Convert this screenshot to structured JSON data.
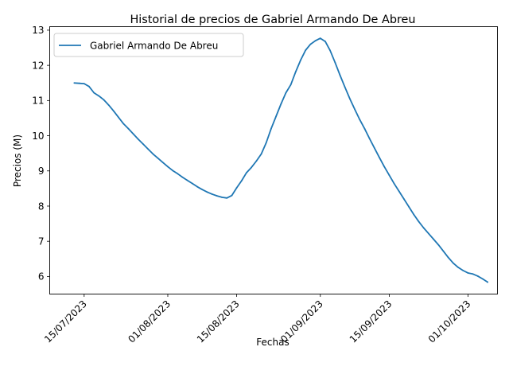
{
  "chart_data": {
    "type": "line",
    "title": "Historial de precios de Gabriel Armando De Abreu",
    "xlabel": "Fechas",
    "ylabel": "Precios (M)",
    "x_ticks": [
      "15/07/2023",
      "01/08/2023",
      "15/08/2023",
      "01/09/2023",
      "15/09/2023",
      "01/10/2023"
    ],
    "y_ticks": [
      "6",
      "7",
      "8",
      "9",
      "10",
      "11",
      "12",
      "13"
    ],
    "xlim": [
      "2023-07-08",
      "2023-10-07"
    ],
    "ylim": [
      5.5,
      13.1
    ],
    "grid": false,
    "legend_position": "upper-left",
    "color": "#1f77b4",
    "series": [
      {
        "name": "Gabriel Armando De Abreu",
        "points": [
          [
            "2023-07-13",
            11.5
          ],
          [
            "2023-07-14",
            11.49
          ],
          [
            "2023-07-15",
            11.48
          ],
          [
            "2023-07-16",
            11.4
          ],
          [
            "2023-07-17",
            11.22
          ],
          [
            "2023-07-18",
            11.13
          ],
          [
            "2023-07-19",
            11.02
          ],
          [
            "2023-07-20",
            10.87
          ],
          [
            "2023-07-21",
            10.7
          ],
          [
            "2023-07-22",
            10.52
          ],
          [
            "2023-07-23",
            10.34
          ],
          [
            "2023-07-24",
            10.2
          ],
          [
            "2023-07-25",
            10.05
          ],
          [
            "2023-07-26",
            9.9
          ],
          [
            "2023-07-27",
            9.76
          ],
          [
            "2023-07-28",
            9.62
          ],
          [
            "2023-07-29",
            9.48
          ],
          [
            "2023-07-30",
            9.36
          ],
          [
            "2023-07-31",
            9.24
          ],
          [
            "2023-08-01",
            9.12
          ],
          [
            "2023-08-02",
            9.01
          ],
          [
            "2023-08-03",
            8.92
          ],
          [
            "2023-08-04",
            8.82
          ],
          [
            "2023-08-05",
            8.73
          ],
          [
            "2023-08-06",
            8.64
          ],
          [
            "2023-08-07",
            8.55
          ],
          [
            "2023-08-08",
            8.47
          ],
          [
            "2023-08-09",
            8.4
          ],
          [
            "2023-08-10",
            8.34
          ],
          [
            "2023-08-11",
            8.29
          ],
          [
            "2023-08-12",
            8.25
          ],
          [
            "2023-08-13",
            8.23
          ],
          [
            "2023-08-14",
            8.3
          ],
          [
            "2023-08-15",
            8.52
          ],
          [
            "2023-08-16",
            8.72
          ],
          [
            "2023-08-17",
            8.95
          ],
          [
            "2023-08-18",
            9.1
          ],
          [
            "2023-08-19",
            9.28
          ],
          [
            "2023-08-20",
            9.48
          ],
          [
            "2023-08-21",
            9.8
          ],
          [
            "2023-08-22",
            10.2
          ],
          [
            "2023-08-23",
            10.55
          ],
          [
            "2023-08-24",
            10.9
          ],
          [
            "2023-08-25",
            11.22
          ],
          [
            "2023-08-26",
            11.45
          ],
          [
            "2023-08-27",
            11.82
          ],
          [
            "2023-08-28",
            12.15
          ],
          [
            "2023-08-29",
            12.43
          ],
          [
            "2023-08-30",
            12.6
          ],
          [
            "2023-08-31",
            12.7
          ],
          [
            "2023-09-01",
            12.77
          ],
          [
            "2023-09-02",
            12.68
          ],
          [
            "2023-09-03",
            12.42
          ],
          [
            "2023-09-04",
            12.08
          ],
          [
            "2023-09-05",
            11.72
          ],
          [
            "2023-09-06",
            11.38
          ],
          [
            "2023-09-07",
            11.05
          ],
          [
            "2023-09-08",
            10.75
          ],
          [
            "2023-09-09",
            10.46
          ],
          [
            "2023-09-10",
            10.2
          ],
          [
            "2023-09-11",
            9.92
          ],
          [
            "2023-09-12",
            9.65
          ],
          [
            "2023-09-13",
            9.38
          ],
          [
            "2023-09-14",
            9.12
          ],
          [
            "2023-09-15",
            8.88
          ],
          [
            "2023-09-16",
            8.64
          ],
          [
            "2023-09-17",
            8.42
          ],
          [
            "2023-09-18",
            8.2
          ],
          [
            "2023-09-19",
            7.98
          ],
          [
            "2023-09-20",
            7.76
          ],
          [
            "2023-09-21",
            7.56
          ],
          [
            "2023-09-22",
            7.38
          ],
          [
            "2023-09-23",
            7.22
          ],
          [
            "2023-09-24",
            7.06
          ],
          [
            "2023-09-25",
            6.9
          ],
          [
            "2023-09-26",
            6.72
          ],
          [
            "2023-09-27",
            6.54
          ],
          [
            "2023-09-28",
            6.38
          ],
          [
            "2023-09-29",
            6.26
          ],
          [
            "2023-09-30",
            6.17
          ],
          [
            "2023-10-01",
            6.1
          ],
          [
            "2023-10-02",
            6.07
          ],
          [
            "2023-10-03",
            6.01
          ],
          [
            "2023-10-04",
            5.93
          ],
          [
            "2023-10-05",
            5.84
          ]
        ]
      }
    ]
  }
}
